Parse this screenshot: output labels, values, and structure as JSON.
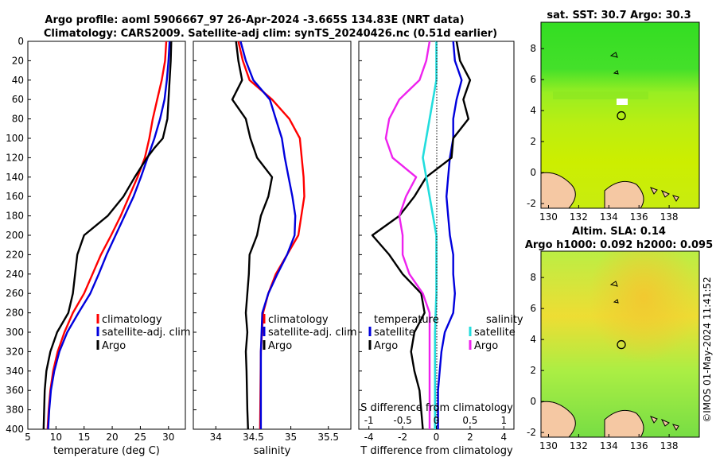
{
  "title": {
    "line1": "Argo profile: aoml 5906667_97 26-Apr-2024 -3.665S 134.83E (NRT data)",
    "line2": "Climatology: CARS2009. Satellite-adj clim: synTS_20240426.nc (0.51d earlier)"
  },
  "colors": {
    "climatology": "#ff0000",
    "satellite": "#0000dd",
    "argo": "#000000",
    "sat_salinity": "#22dddd",
    "argo_salinity_diff": "#ee22ee",
    "land": "#f5c8a3"
  },
  "chart_data": [
    {
      "type": "line",
      "name": "temperature-profile",
      "xlabel": "temperature (deg C)",
      "ylabel": "",
      "xlim": [
        5,
        33
      ],
      "ylim": [
        0,
        400
      ],
      "xticks": [
        "5",
        "10",
        "15",
        "20",
        "25",
        "30"
      ],
      "yticks": [
        "0",
        "20",
        "40",
        "60",
        "80",
        "100",
        "120",
        "140",
        "160",
        "180",
        "200",
        "220",
        "240",
        "260",
        "280",
        "300",
        "320",
        "340",
        "360",
        "380",
        "400"
      ],
      "legend": [
        "climatology",
        "satellite-adj. clim",
        "Argo"
      ],
      "series": [
        {
          "name": "climatology",
          "points": [
            [
              29.6,
              0
            ],
            [
              29.4,
              20
            ],
            [
              28.8,
              40
            ],
            [
              28.0,
              60
            ],
            [
              27.2,
              80
            ],
            [
              26.6,
              100
            ],
            [
              25.8,
              120
            ],
            [
              24.5,
              140
            ],
            [
              23.0,
              160
            ],
            [
              21.5,
              180
            ],
            [
              19.8,
              200
            ],
            [
              18.0,
              220
            ],
            [
              16.5,
              240
            ],
            [
              15.0,
              260
            ],
            [
              13.0,
              280
            ],
            [
              11.5,
              300
            ],
            [
              10.3,
              320
            ],
            [
              9.5,
              340
            ],
            [
              9.0,
              360
            ],
            [
              8.7,
              380
            ],
            [
              8.5,
              400
            ]
          ]
        },
        {
          "name": "satellite-adj. clim",
          "points": [
            [
              30.2,
              0
            ],
            [
              30.0,
              20
            ],
            [
              29.7,
              40
            ],
            [
              29.3,
              60
            ],
            [
              28.5,
              80
            ],
            [
              27.5,
              100
            ],
            [
              26.3,
              120
            ],
            [
              25.1,
              140
            ],
            [
              23.8,
              160
            ],
            [
              22.2,
              180
            ],
            [
              20.6,
              200
            ],
            [
              19.0,
              220
            ],
            [
              17.6,
              240
            ],
            [
              16.1,
              260
            ],
            [
              14.0,
              280
            ],
            [
              12.0,
              300
            ],
            [
              10.6,
              320
            ],
            [
              9.7,
              340
            ],
            [
              9.1,
              360
            ],
            [
              8.8,
              380
            ],
            [
              8.6,
              400
            ]
          ]
        },
        {
          "name": "Argo",
          "points": [
            [
              30.5,
              0
            ],
            [
              30.4,
              20
            ],
            [
              30.2,
              40
            ],
            [
              30.0,
              60
            ],
            [
              29.8,
              80
            ],
            [
              29.0,
              100
            ],
            [
              27.5,
              110
            ],
            [
              26.2,
              120
            ],
            [
              24.0,
              140
            ],
            [
              22.0,
              160
            ],
            [
              19.2,
              180
            ],
            [
              15.0,
              200
            ],
            [
              13.8,
              220
            ],
            [
              13.4,
              240
            ],
            [
              13.0,
              260
            ],
            [
              12.2,
              280
            ],
            [
              10.2,
              300
            ],
            [
              9.0,
              320
            ],
            [
              8.3,
              340
            ],
            [
              8.0,
              360
            ],
            [
              7.9,
              380
            ],
            [
              7.8,
              400
            ]
          ]
        }
      ]
    },
    {
      "type": "line",
      "name": "salinity-profile",
      "xlabel": "salinity",
      "xlim": [
        33.7,
        35.8
      ],
      "ylim": [
        0,
        400
      ],
      "xticks": [
        "34",
        "34.5",
        "35",
        "35.5"
      ],
      "legend": [
        "climatology",
        "satellite-adj. clim",
        "Argo"
      ],
      "series": [
        {
          "name": "climatology",
          "points": [
            [
              34.3,
              0
            ],
            [
              34.36,
              20
            ],
            [
              34.45,
              40
            ],
            [
              34.75,
              60
            ],
            [
              34.98,
              80
            ],
            [
              35.12,
              100
            ],
            [
              35.17,
              140
            ],
            [
              35.18,
              160
            ],
            [
              35.1,
              200
            ],
            [
              34.95,
              220
            ],
            [
              34.8,
              240
            ],
            [
              34.7,
              260
            ],
            [
              34.63,
              280
            ],
            [
              34.6,
              320
            ],
            [
              34.59,
              400
            ]
          ]
        },
        {
          "name": "satellite-adj. clim",
          "points": [
            [
              34.33,
              0
            ],
            [
              34.4,
              20
            ],
            [
              34.5,
              40
            ],
            [
              34.72,
              60
            ],
            [
              34.8,
              80
            ],
            [
              34.88,
              100
            ],
            [
              34.92,
              120
            ],
            [
              34.97,
              140
            ],
            [
              35.02,
              160
            ],
            [
              35.06,
              180
            ],
            [
              35.05,
              200
            ],
            [
              34.95,
              220
            ],
            [
              34.82,
              240
            ],
            [
              34.7,
              260
            ],
            [
              34.62,
              280
            ],
            [
              34.6,
              320
            ],
            [
              34.6,
              400
            ]
          ]
        },
        {
          "name": "Argo",
          "points": [
            [
              34.27,
              0
            ],
            [
              34.3,
              20
            ],
            [
              34.35,
              40
            ],
            [
              34.22,
              60
            ],
            [
              34.4,
              80
            ],
            [
              34.46,
              100
            ],
            [
              34.55,
              120
            ],
            [
              34.75,
              140
            ],
            [
              34.7,
              160
            ],
            [
              34.6,
              180
            ],
            [
              34.55,
              200
            ],
            [
              34.45,
              220
            ],
            [
              34.44,
              240
            ],
            [
              34.42,
              260
            ],
            [
              34.4,
              280
            ],
            [
              34.42,
              300
            ],
            [
              34.4,
              320
            ],
            [
              34.41,
              340
            ],
            [
              34.42,
              380
            ],
            [
              34.43,
              400
            ]
          ]
        }
      ]
    },
    {
      "type": "line",
      "name": "difference-from-climatology",
      "xlabel": "T difference from climatology",
      "xlabel_top": "S difference from climatology",
      "xlim": [
        -4.6,
        4.6
      ],
      "xticks": [
        "-4",
        "-2",
        "0",
        "2",
        "4"
      ],
      "xticks_top": [
        "-1",
        "-0.5",
        "0",
        "0.5",
        "1"
      ],
      "ylim": [
        0,
        400
      ],
      "legend_left": {
        "title": "temperature",
        "entries": [
          "satellite",
          "Argo"
        ]
      },
      "legend_right": {
        "title": "salinity",
        "entries": [
          "satellite",
          "Argo"
        ]
      },
      "series": [
        {
          "name": "temperature satellite",
          "points": [
            [
              1.0,
              0
            ],
            [
              1.1,
              20
            ],
            [
              1.5,
              40
            ],
            [
              1.2,
              60
            ],
            [
              1.0,
              80
            ],
            [
              1.0,
              100
            ],
            [
              0.8,
              120
            ],
            [
              0.7,
              140
            ],
            [
              0.6,
              160
            ],
            [
              0.7,
              180
            ],
            [
              0.8,
              200
            ],
            [
              1.0,
              220
            ],
            [
              1.0,
              240
            ],
            [
              1.1,
              260
            ],
            [
              1.0,
              280
            ],
            [
              0.5,
              300
            ],
            [
              0.3,
              320
            ],
            [
              0.2,
              340
            ],
            [
              0.1,
              360
            ],
            [
              0.1,
              380
            ],
            [
              0.1,
              400
            ]
          ]
        },
        {
          "name": "temperature Argo",
          "points": [
            [
              1.2,
              0
            ],
            [
              1.4,
              20
            ],
            [
              2.0,
              40
            ],
            [
              1.6,
              60
            ],
            [
              1.9,
              80
            ],
            [
              1.0,
              100
            ],
            [
              0.9,
              120
            ],
            [
              -0.6,
              140
            ],
            [
              -1.3,
              160
            ],
            [
              -2.2,
              180
            ],
            [
              -3.8,
              200
            ],
            [
              -2.8,
              220
            ],
            [
              -2.0,
              240
            ],
            [
              -0.9,
              260
            ],
            [
              -0.7,
              280
            ],
            [
              -1.3,
              300
            ],
            [
              -1.5,
              320
            ],
            [
              -1.3,
              340
            ],
            [
              -1.0,
              360
            ],
            [
              -0.9,
              380
            ],
            [
              -0.8,
              400
            ]
          ]
        },
        {
          "name": "salinity satellite",
          "points": [
            [
              0.0,
              0
            ],
            [
              0.0,
              40
            ],
            [
              -0.1,
              80
            ],
            [
              -0.2,
              120
            ],
            [
              -0.1,
              160
            ],
            [
              0.0,
              200
            ],
            [
              0.0,
              260
            ],
            [
              -0.02,
              300
            ],
            [
              -0.02,
              400
            ]
          ]
        },
        {
          "name": "salinity Argo",
          "points": [
            [
              -0.1,
              0
            ],
            [
              -0.15,
              20
            ],
            [
              -0.25,
              40
            ],
            [
              -0.55,
              60
            ],
            [
              -0.7,
              80
            ],
            [
              -0.75,
              100
            ],
            [
              -0.65,
              120
            ],
            [
              -0.3,
              140
            ],
            [
              -0.45,
              160
            ],
            [
              -0.55,
              180
            ],
            [
              -0.5,
              200
            ],
            [
              -0.5,
              220
            ],
            [
              -0.4,
              240
            ],
            [
              -0.2,
              260
            ],
            [
              -0.1,
              280
            ],
            [
              -0.1,
              300
            ],
            [
              -0.1,
              340
            ],
            [
              -0.1,
              400
            ]
          ]
        }
      ]
    },
    {
      "type": "heatmap",
      "name": "sat-sst-map",
      "title": "sat. SST: 30.7 Argo: 30.3",
      "xticks": [
        "130",
        "132",
        "134",
        "136",
        "138"
      ],
      "yticks": [
        "-2",
        "0",
        "2",
        "4",
        "6",
        "8"
      ],
      "xlim": [
        129.5,
        140
      ],
      "ylim": [
        -2.3,
        9.7
      ],
      "marker": {
        "lon": 134.83,
        "lat": 3.67
      }
    },
    {
      "type": "heatmap",
      "name": "altimetry-map",
      "title": "Altim. SLA: 0.14",
      "subtitle": "Argo h1000: 0.092 h2000: 0.095",
      "xticks": [
        "130",
        "132",
        "134",
        "136",
        "138"
      ],
      "yticks": [
        "-2",
        "0",
        "2",
        "4",
        "6",
        "8"
      ],
      "xlim": [
        129.5,
        140
      ],
      "ylim": [
        -2.3,
        9.7
      ],
      "marker": {
        "lon": 134.83,
        "lat": 3.67
      }
    }
  ],
  "credit": "©IMOS 01-May-2024 11:41:52"
}
